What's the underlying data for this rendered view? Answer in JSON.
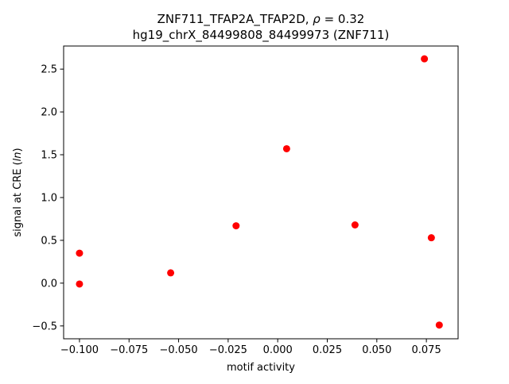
{
  "chart_data": {
    "type": "scatter",
    "title_line1_prefix": "ZNF711_TFAP2A_TFAP2D, ",
    "title_line1_rho": "ρ",
    "title_line1_suffix": " = 0.32",
    "title_line2": "hg19_chrX_84499808_84499973 (ZNF711)",
    "xlabel": "motif activity",
    "ylabel_prefix": "signal at CRE (",
    "ylabel_italic": "ln",
    "ylabel_suffix": ")",
    "xlim": [
      -0.108,
      0.091
    ],
    "ylim": [
      -0.65,
      2.77
    ],
    "xticks": [
      -0.1,
      -0.075,
      -0.05,
      -0.025,
      0.0,
      0.025,
      0.05,
      0.075
    ],
    "xtick_labels": [
      "−0.100",
      "−0.075",
      "−0.050",
      "−0.025",
      "0.000",
      "0.025",
      "0.050",
      "0.075"
    ],
    "yticks": [
      -0.5,
      0.0,
      0.5,
      1.0,
      1.5,
      2.0,
      2.5
    ],
    "ytick_labels": [
      "−0.5",
      "0.0",
      "0.5",
      "1.0",
      "1.5",
      "2.0",
      "2.5"
    ],
    "marker_color": "#ff0000",
    "grid": false,
    "points": [
      {
        "x": -0.1,
        "y": 0.35
      },
      {
        "x": -0.1,
        "y": -0.01
      },
      {
        "x": -0.054,
        "y": 0.12
      },
      {
        "x": -0.021,
        "y": 0.67
      },
      {
        "x": 0.0045,
        "y": 1.57
      },
      {
        "x": 0.039,
        "y": 0.68
      },
      {
        "x": 0.074,
        "y": 2.62
      },
      {
        "x": 0.0775,
        "y": 0.53
      },
      {
        "x": 0.0815,
        "y": -0.49
      }
    ]
  }
}
